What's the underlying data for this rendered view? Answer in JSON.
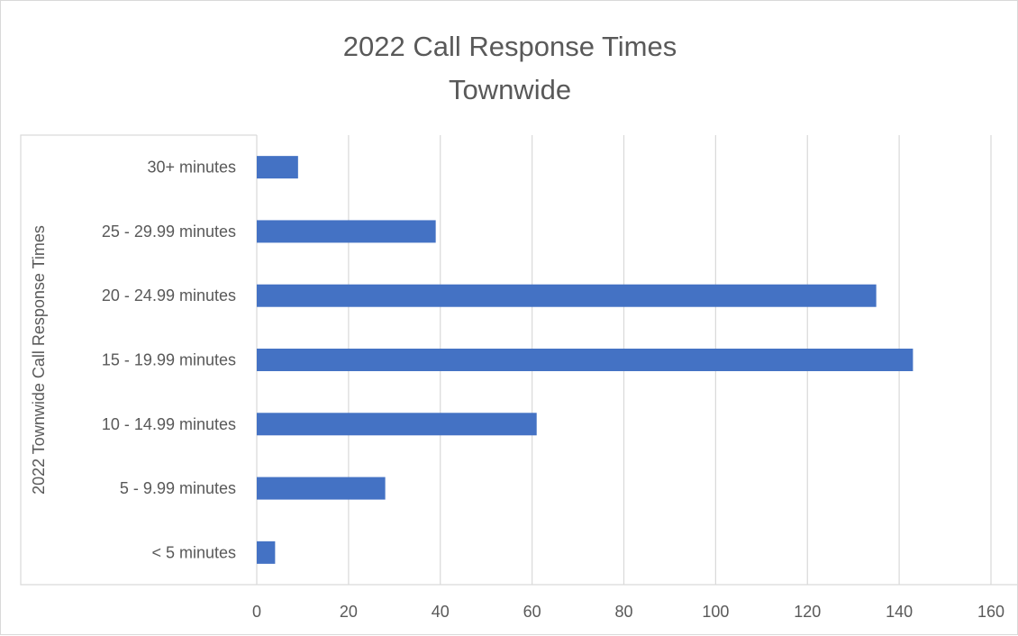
{
  "chart_data": {
    "type": "bar",
    "orientation": "horizontal",
    "title": "2022 Call Response Times",
    "subtitle": "Townwide",
    "xlabel": "",
    "ylabel": "2022 Townwide Call Response Times",
    "categories": [
      "< 5 minutes",
      "5 - 9.99 minutes",
      "10 - 14.99 minutes",
      "15 - 19.99 minutes",
      "20 - 24.99 minutes",
      "25 - 29.99 minutes",
      "30+ minutes"
    ],
    "values": [
      4,
      28,
      61,
      143,
      135,
      39,
      9
    ],
    "xlim": [
      0,
      160
    ],
    "xticks": [
      0,
      20,
      40,
      60,
      80,
      100,
      120,
      140,
      160
    ],
    "grid": "vertical",
    "legend": "none",
    "bar_color": "#4472c4",
    "grid_color": "#d9d9d9",
    "text_color": "#595959"
  }
}
